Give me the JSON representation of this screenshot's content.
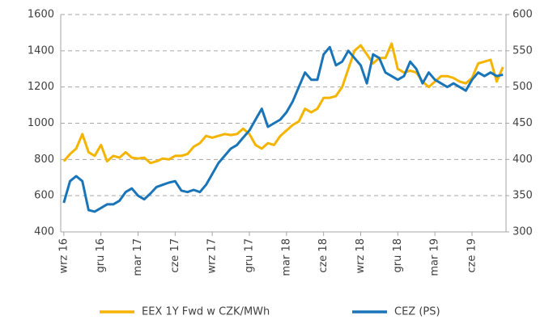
{
  "chart_data": {
    "type": "line",
    "categories": [
      "wrz 16",
      null,
      null,
      null,
      null,
      null,
      "gru 16",
      null,
      null,
      null,
      null,
      null,
      "mar 17",
      null,
      null,
      null,
      null,
      null,
      "cze 17",
      null,
      null,
      null,
      null,
      null,
      "wrz 17",
      null,
      null,
      null,
      null,
      null,
      "gru 17",
      null,
      null,
      null,
      null,
      null,
      "mar 18",
      null,
      null,
      null,
      null,
      null,
      "cze 18",
      null,
      null,
      null,
      null,
      null,
      "wrz 18",
      null,
      null,
      null,
      null,
      null,
      "gru 18",
      null,
      null,
      null,
      null,
      null,
      "mar 19",
      null,
      null,
      null,
      null,
      null,
      "cze 19",
      null,
      null,
      null,
      null,
      null
    ],
    "series": [
      {
        "name": "EEX 1Y Fwd w CZK/MWh",
        "color": "#f5b400",
        "axis": "y",
        "values": [
          790,
          830,
          860,
          940,
          840,
          820,
          880,
          790,
          820,
          810,
          840,
          810,
          805,
          810,
          780,
          790,
          805,
          800,
          820,
          820,
          830,
          870,
          890,
          930,
          920,
          930,
          940,
          935,
          940,
          970,
          940,
          880,
          860,
          890,
          880,
          930,
          960,
          990,
          1010,
          1080,
          1060,
          1080,
          1140,
          1140,
          1150,
          1200,
          1300,
          1400,
          1430,
          1380,
          1330,
          1360,
          1360,
          1440,
          1300,
          1280,
          1290,
          1280,
          1230,
          1200,
          1230,
          1260,
          1260,
          1250,
          1230,
          1220,
          1250,
          1330,
          1340,
          1350,
          1230,
          1310
        ]
      },
      {
        "name": "CEZ (PS)",
        "color": "#1a74b8",
        "axis": "y2",
        "values": [
          340,
          370,
          377,
          370,
          330,
          328,
          333,
          338,
          338,
          343,
          355,
          360,
          350,
          345,
          353,
          362,
          365,
          368,
          370,
          357,
          355,
          358,
          355,
          365,
          380,
          395,
          405,
          415,
          420,
          430,
          440,
          455,
          470,
          445,
          450,
          455,
          465,
          480,
          500,
          520,
          510,
          510,
          545,
          555,
          530,
          535,
          550,
          540,
          530,
          505,
          545,
          540,
          520,
          515,
          510,
          515,
          535,
          525,
          505,
          520,
          510,
          505,
          500,
          505,
          500,
          495,
          510,
          520,
          515,
          520,
          515,
          517
        ]
      }
    ],
    "ylim": [
      400,
      1600
    ],
    "yticks": [
      400,
      600,
      800,
      1000,
      1200,
      1400,
      1600
    ],
    "y2lim": [
      300,
      600
    ],
    "y2ticks": [
      300,
      350,
      400,
      450,
      500,
      550,
      600
    ],
    "grid": true,
    "legend": "bottom"
  }
}
